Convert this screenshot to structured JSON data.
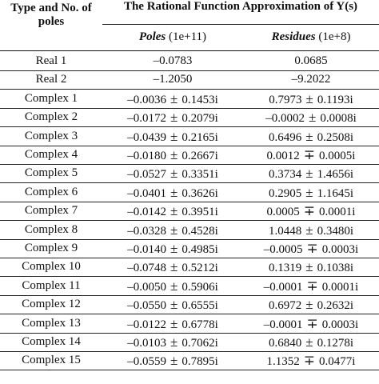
{
  "header": {
    "type_label_line1": "Type and No. of",
    "type_label_line2": "poles",
    "main_title": "The Rational Function Approximation of Y(s)",
    "poles_label": "Poles",
    "poles_unit": "(1e+11)",
    "residues_label": "Residues",
    "residues_unit": "(1e+8)"
  },
  "rows": [
    {
      "type": "Real 1",
      "pole_re": "–0.0783",
      "pole_sign": "",
      "pole_im": "",
      "res_re": "0.0685",
      "res_sign": "",
      "res_im": ""
    },
    {
      "type": "Real 2",
      "pole_re": "–1.2050",
      "pole_sign": "",
      "pole_im": "",
      "res_re": "–9.2022",
      "res_sign": "",
      "res_im": ""
    },
    {
      "type": "Complex 1",
      "pole_re": "–0.0036",
      "pole_sign": "±",
      "pole_im": "0.1453i",
      "res_re": "0.7973",
      "res_sign": "±",
      "res_im": "0.1193i"
    },
    {
      "type": "Complex 2",
      "pole_re": "–0.0172",
      "pole_sign": "±",
      "pole_im": "0.2079i",
      "res_re": "–0.0002",
      "res_sign": "±",
      "res_im": "0.0008i"
    },
    {
      "type": "Complex 3",
      "pole_re": "–0.0439",
      "pole_sign": "±",
      "pole_im": "0.2165i",
      "res_re": "0.6496",
      "res_sign": "±",
      "res_im": "0.2508i"
    },
    {
      "type": "Complex 4",
      "pole_re": "–0.0180",
      "pole_sign": "±",
      "pole_im": "0.2667i",
      "res_re": "0.0012",
      "res_sign": "∓",
      "res_im": "0.0005i"
    },
    {
      "type": "Complex 5",
      "pole_re": "–0.0527",
      "pole_sign": "±",
      "pole_im": "0.3351i",
      "res_re": "0.3734",
      "res_sign": "±",
      "res_im": "1.4656i"
    },
    {
      "type": "Complex 6",
      "pole_re": "–0.0401",
      "pole_sign": "±",
      "pole_im": "0.3626i",
      "res_re": "0.2905",
      "res_sign": "±",
      "res_im": "1.1645i"
    },
    {
      "type": "Complex 7",
      "pole_re": "–0.0142",
      "pole_sign": "±",
      "pole_im": "0.3951i",
      "res_re": "0.0005",
      "res_sign": "∓",
      "res_im": "0.0001i"
    },
    {
      "type": "Complex 8",
      "pole_re": "–0.0328",
      "pole_sign": "±",
      "pole_im": "0.4528i",
      "res_re": "1.0448",
      "res_sign": "±",
      "res_im": "0.3480i"
    },
    {
      "type": "Complex 9",
      "pole_re": "–0.0140",
      "pole_sign": "±",
      "pole_im": "0.4985i",
      "res_re": "–0.0005",
      "res_sign": "∓",
      "res_im": "0.0003i"
    },
    {
      "type": "Complex 10",
      "pole_re": "–0.0748",
      "pole_sign": "±",
      "pole_im": "0.5212i",
      "res_re": "0.1319",
      "res_sign": "±",
      "res_im": "0.1038i"
    },
    {
      "type": "Complex 11",
      "pole_re": "–0.0050",
      "pole_sign": "±",
      "pole_im": "0.5906i",
      "res_re": "–0.0001",
      "res_sign": "∓",
      "res_im": "0.0001i"
    },
    {
      "type": "Complex 12",
      "pole_re": "–0.0550",
      "pole_sign": "±",
      "pole_im": "0.6555i",
      "res_re": "0.6972",
      "res_sign": "±",
      "res_im": "0.2632i"
    },
    {
      "type": "Complex 13",
      "pole_re": "–0.0122",
      "pole_sign": "±",
      "pole_im": "0.6778i",
      "res_re": "–0.0001",
      "res_sign": "∓",
      "res_im": "0.0003i"
    },
    {
      "type": "Complex 14",
      "pole_re": "–0.0103",
      "pole_sign": "±",
      "pole_im": "0.7062i",
      "res_re": "0.6840",
      "res_sign": "±",
      "res_im": "0.1278i"
    },
    {
      "type": "Complex 15",
      "pole_re": "–0.0559",
      "pole_sign": "±",
      "pole_im": "0.7895i",
      "res_re": "1.1352",
      "res_sign": "∓",
      "res_im": "0.0477i"
    }
  ]
}
